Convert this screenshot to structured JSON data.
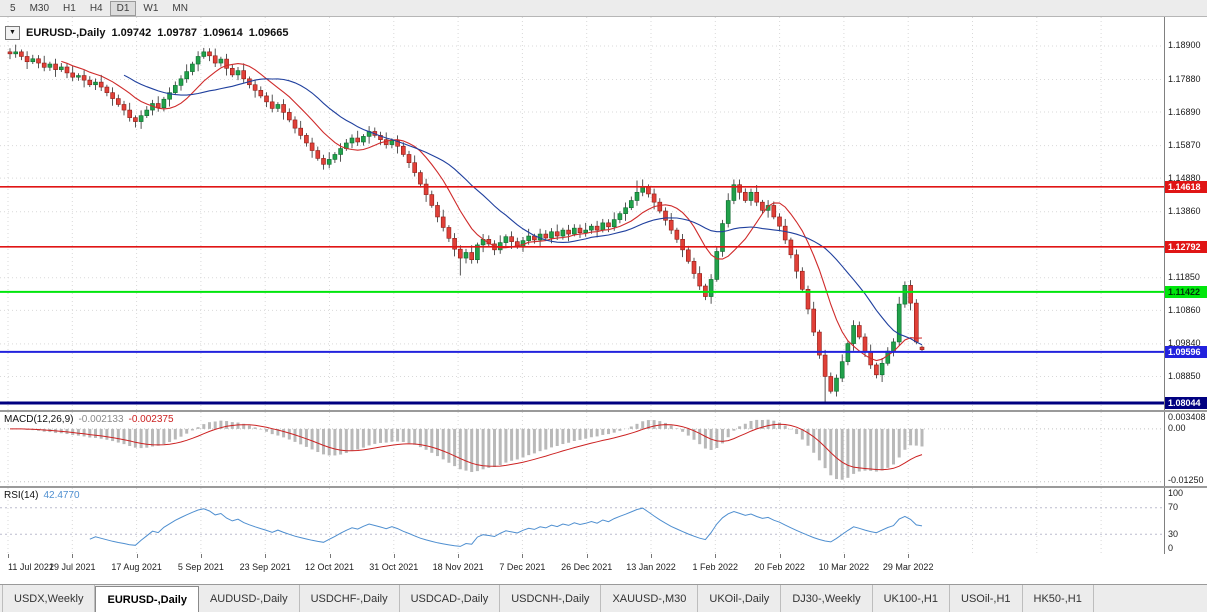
{
  "theme": {
    "bull": "#21a14a",
    "bull_border": "#0c6b2e",
    "bear": "#e04038",
    "bear_border": "#8f1d17",
    "wick": "#2b2b2b",
    "grid": "#d9d9d9",
    "macd_bar": "#b9b9b9",
    "macd_signal": "#cc2222",
    "rsi_line": "#4f8fd0"
  },
  "toolbar": {
    "timeframes": [
      "5",
      "M30",
      "H1",
      "H4",
      "D1",
      "W1",
      "MN"
    ],
    "active": "D1"
  },
  "chart_title": {
    "dropdown": "▼",
    "symbol": "EURUSD-,Daily",
    "open": "1.09742",
    "high": "1.09787",
    "low": "1.09614",
    "close": "1.09665"
  },
  "price_axis_labels": [
    "1.18900",
    "1.17880",
    "1.16890",
    "1.15870",
    "1.14880",
    "1.13860",
    "1.11850",
    "1.10860",
    "1.09840",
    "1.08850"
  ],
  "date_labels": [
    "11 Jul 2021",
    "29 Jul 2021",
    "17 Aug 2021",
    "5 Sep 2021",
    "23 Sep 2021",
    "12 Oct 2021",
    "31 Oct 2021",
    "18 Nov 2021",
    "7 Dec 2021",
    "26 Dec 2021",
    "13 Jan 2022",
    "1 Feb 2022",
    "20 Feb 2022",
    "10 Mar 2022",
    "29 Mar 2022"
  ],
  "macd_panel": {
    "name": "MACD(12,26,9)",
    "value_main": "-0.002133",
    "value_signal": "-0.002375",
    "axis": [
      "0.003408",
      "0.00",
      "-0.01250"
    ]
  },
  "rsi_panel": {
    "name": "RSI(14)",
    "value": "42.4770",
    "axis": [
      "100",
      "70",
      "30",
      "0"
    ]
  },
  "tabs": {
    "active": "EURUSD-,Daily",
    "items": [
      "USDX,Weekly",
      "EURUSD-,Daily",
      "AUDUSD-,Daily",
      "USDCHF-,Daily",
      "USDCAD-,Daily",
      "USDCNH-,Daily",
      "XAUUSD-,M30",
      "UKOil-,Daily",
      "DJ30-,Weekly",
      "UK100-,H1",
      "USOil-,H1",
      "HK50-,H1"
    ]
  },
  "chart_data": {
    "type": "candlestick",
    "symbol": "EURUSD-",
    "timeframe": "Daily",
    "ylim": [
      1.0783,
      1.1978
    ],
    "x_tick_labels": [
      "11 Jul 2021",
      "29 Jul 2021",
      "17 Aug 2021",
      "5 Sep 2021",
      "23 Sep 2021",
      "12 Oct 2021",
      "31 Oct 2021",
      "18 Nov 2021",
      "7 Dec 2021",
      "26 Dec 2021",
      "13 Jan 2022",
      "1 Feb 2022",
      "20 Feb 2022",
      "10 Mar 2022",
      "29 Mar 2022"
    ],
    "first_open": 1.1872,
    "closes": [
      1.1866,
      1.1872,
      1.1858,
      1.1842,
      1.1851,
      1.1838,
      1.1825,
      1.1835,
      1.1818,
      1.1826,
      1.1808,
      1.1795,
      1.18,
      1.1786,
      1.1772,
      1.178,
      1.1765,
      1.1748,
      1.173,
      1.1712,
      1.1695,
      1.1672,
      1.166,
      1.1678,
      1.1695,
      1.1715,
      1.1702,
      1.1728,
      1.1748,
      1.177,
      1.179,
      1.1812,
      1.1835,
      1.1858,
      1.1872,
      1.186,
      1.1838,
      1.185,
      1.1822,
      1.1802,
      1.1815,
      1.179,
      1.1772,
      1.1755,
      1.1738,
      1.172,
      1.17,
      1.1712,
      1.1688,
      1.1665,
      1.164,
      1.1618,
      1.1595,
      1.1572,
      1.1548,
      1.153,
      1.1545,
      1.156,
      1.1578,
      1.1595,
      1.161,
      1.1598,
      1.1615,
      1.163,
      1.1618,
      1.1605,
      1.159,
      1.1602,
      1.1585,
      1.156,
      1.1535,
      1.1505,
      1.147,
      1.1438,
      1.1405,
      1.137,
      1.1338,
      1.1305,
      1.1272,
      1.1245,
      1.1262,
      1.124,
      1.1285,
      1.1302,
      1.1288,
      1.127,
      1.1292,
      1.131,
      1.1295,
      1.128,
      1.1298,
      1.1312,
      1.13,
      1.1318,
      1.1306,
      1.1325,
      1.1312,
      1.133,
      1.1318,
      1.1336,
      1.1322,
      1.133,
      1.1342,
      1.133,
      1.1352,
      1.134,
      1.1362,
      1.138,
      1.1398,
      1.142,
      1.1445,
      1.1462,
      1.144,
      1.1415,
      1.1388,
      1.136,
      1.133,
      1.1302,
      1.127,
      1.1235,
      1.1198,
      1.116,
      1.1128,
      1.118,
      1.1265,
      1.135,
      1.142,
      1.1468,
      1.1445,
      1.142,
      1.1445,
      1.1415,
      1.139,
      1.1405,
      1.137,
      1.1342,
      1.13,
      1.1255,
      1.1205,
      1.115,
      1.109,
      1.102,
      1.095,
      1.0885,
      1.084,
      1.088,
      1.093,
      1.0985,
      1.104,
      1.1005,
      1.096,
      1.092,
      1.089,
      1.0925,
      1.0962,
      1.099,
      1.1105,
      1.1162,
      1.1108,
      1.099,
      1.09665
    ],
    "wick_cycle": [
      0.0011,
      0.0022,
      0.0007,
      0.0016,
      0.0012
    ],
    "spikes": [
      {
        "i": 22,
        "l": 1.1642
      },
      {
        "i": 79,
        "l": 1.1192
      },
      {
        "i": 110,
        "h": 1.1481
      },
      {
        "i": 127,
        "h": 1.1484
      },
      {
        "i": 143,
        "l": 1.0806
      },
      {
        "i": 157,
        "h": 1.1174
      }
    ],
    "last_candle": {
      "o": 1.09742,
      "h": 1.09787,
      "l": 1.09614,
      "c": 1.09665
    },
    "moving_averages": [
      {
        "period": 10,
        "color": "#cf2b2b"
      },
      {
        "period": 21,
        "color": "#20409e"
      }
    ],
    "hlines": [
      {
        "price": 1.14618,
        "label": "1.14618",
        "color": "#e01515",
        "width": 1.6,
        "tag_bg": "#e01515",
        "tag_fg": "#ffffff"
      },
      {
        "price": 1.12792,
        "label": "1.12792",
        "color": "#e01515",
        "width": 1.6,
        "tag_bg": "#e01515",
        "tag_fg": "#ffffff"
      },
      {
        "price": 1.11422,
        "label": "1.11422",
        "color": "#00e60c",
        "width": 2,
        "tag_bg": "#00e60c",
        "tag_fg": "#00330a"
      },
      {
        "price": 1.09596,
        "label": "1.09596",
        "color": "#2222dd",
        "width": 2,
        "tag_bg": "#2222dd",
        "tag_fg": "#ffffff"
      },
      {
        "price": 1.08044,
        "label": "1.08044",
        "color": "#000080",
        "width": 3,
        "tag_bg": "#000080",
        "tag_fg": "#ffffff"
      }
    ],
    "macd": {
      "range": [
        -0.0135,
        0.004
      ],
      "grid": [
        0,
        -0.0125
      ],
      "params": {
        "fast": 12,
        "slow": 26,
        "signal": 9
      }
    },
    "rsi": {
      "period": 14,
      "levels": [
        70,
        30
      ],
      "scale": [
        0,
        100
      ]
    }
  }
}
